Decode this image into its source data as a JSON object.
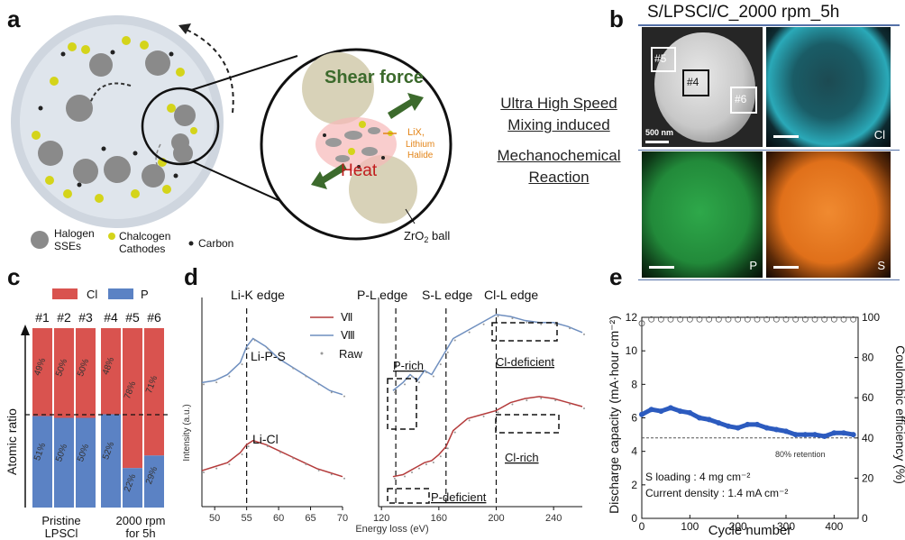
{
  "panels": {
    "a": {
      "letter": "a",
      "shear_force": "Shear force",
      "heat": "Heat",
      "lix": "LiX,",
      "lithium_halide_1": "Lithium",
      "lithium_halide_2": "Halide",
      "zro2_ball": "ZrO",
      "zro2_sub": "2",
      "zro2_tail": " ball",
      "legend_halogen_1": "Halogen",
      "legend_halogen_2": "SSEs",
      "legend_chalcogen_1": "Chalcogen",
      "legend_chalcogen_2": "Cathodes",
      "legend_carbon": "Carbon"
    },
    "middle": {
      "line1": "Ultra High Speed",
      "line2": "Mixing induced",
      "line3": "Mechanochemical",
      "line4": "Reaction"
    },
    "b": {
      "letter": "b",
      "title": "S/LPSCl/C_2000 rpm_5h",
      "box5": "#5",
      "box4": "#4",
      "box6": "#6",
      "scale": "500 nm",
      "cl": "Cl",
      "p": "P",
      "s": "S"
    },
    "c": {
      "letter": "c",
      "legend_cl": "Cl",
      "legend_p": "P",
      "ylabel": "Atomic ratio",
      "group1_1": "Pristine",
      "group1_2": "LPSCl",
      "group2_1": "2000 rpm",
      "group2_2": "for 5h"
    },
    "d": {
      "letter": "d",
      "li_k_edge": "Li-K edge",
      "p_l_edge": "P-L edge",
      "s_l_edge": "S-L edge",
      "cl_l_edge": "Cl-L edge",
      "li_p_s": "Li-P-S",
      "li_cl": "Li-Cl",
      "legend_vii": "Ⅶ",
      "legend_viii": "Ⅷ",
      "legend_raw": "Raw",
      "p_rich": "P-rich",
      "cl_deficient": "Cl-deficient",
      "cl_rich": "Cl-rich",
      "p_deficient": "P-deficient",
      "ylabel": "Intensity (a.u.)",
      "xlabel": "Energy loss (eV)"
    },
    "e": {
      "letter": "e",
      "ylabel_left": "Discharge capacity (mA·hour cm⁻²)",
      "ylabel_right": "Coulombic efficiency (%)",
      "xlabel": "Cycle number",
      "retention": "80% retention",
      "s_loading": "S loading : 4 mg cm⁻²",
      "current_density": "Current density : 1.4 mA cm⁻²"
    }
  },
  "colors": {
    "cl_red": "#d9534f",
    "p_blue": "#5b82c4",
    "spectrum_red": "#b43c3c",
    "spectrum_blue": "#6f8fbf",
    "capacity_blue": "#2c5bbf",
    "eds_cl": "#2fb6c6",
    "eds_p": "#2ea84a",
    "eds_s": "#ee7a22"
  },
  "chart_data": [
    {
      "type": "bar",
      "stacked": true,
      "categories": [
        "#1",
        "#2",
        "#3",
        "#4",
        "#5",
        "#6"
      ],
      "series": [
        {
          "name": "P",
          "values": [
            51,
            50,
            50,
            52,
            22,
            29
          ],
          "labels": [
            "51%",
            "50%",
            "50%",
            "52%",
            "22%",
            "29%"
          ]
        },
        {
          "name": "Cl",
          "values": [
            49,
            50,
            50,
            48,
            78,
            71
          ],
          "labels": [
            "49%",
            "50%",
            "50%",
            "48%",
            "78%",
            "71%"
          ]
        }
      ],
      "ylim": [
        0,
        100
      ]
    },
    {
      "type": "line",
      "panel": "d-left",
      "x": [
        48,
        50,
        52,
        54,
        55,
        56,
        58,
        60,
        62,
        64,
        66,
        68,
        70
      ],
      "xticks": [
        "50",
        "55",
        "60",
        "65",
        "70"
      ],
      "xtick_values": [
        50,
        55,
        60,
        65,
        70
      ],
      "xlim": [
        48,
        70
      ],
      "series": [
        {
          "name": "Ⅷ",
          "values": [
            0.62,
            0.63,
            0.66,
            0.72,
            0.8,
            0.84,
            0.8,
            0.74,
            0.7,
            0.66,
            0.62,
            0.58,
            0.56
          ]
        },
        {
          "name": "Ⅶ",
          "values": [
            0.18,
            0.2,
            0.22,
            0.27,
            0.31,
            0.33,
            0.31,
            0.28,
            0.25,
            0.22,
            0.19,
            0.17,
            0.15
          ]
        }
      ]
    },
    {
      "type": "line",
      "panel": "d-right",
      "x": [
        128,
        135,
        140,
        145,
        150,
        155,
        160,
        165,
        170,
        180,
        190,
        200,
        210,
        220,
        230,
        240,
        250,
        260
      ],
      "xticks": [
        "120",
        "160",
        "200",
        "240"
      ],
      "xtick_values": [
        120,
        160,
        200,
        240
      ],
      "xlim": [
        118,
        260
      ],
      "series": [
        {
          "name": "Ⅷ",
          "values": [
            0.58,
            0.62,
            0.66,
            0.63,
            0.68,
            0.66,
            0.72,
            0.78,
            0.84,
            0.88,
            0.92,
            0.96,
            0.95,
            0.93,
            0.92,
            0.92,
            0.9,
            0.87
          ]
        },
        {
          "name": "Ⅶ",
          "values": [
            0.15,
            0.16,
            0.18,
            0.2,
            0.22,
            0.23,
            0.26,
            0.3,
            0.38,
            0.44,
            0.46,
            0.48,
            0.52,
            0.54,
            0.55,
            0.54,
            0.52,
            0.5
          ]
        }
      ]
    },
    {
      "type": "scatter",
      "panel": "e",
      "xlim": [
        0,
        450
      ],
      "xticks": [
        0,
        100,
        200,
        300,
        400
      ],
      "ylim_left": [
        0,
        12
      ],
      "yticks_left": [
        0,
        2,
        4,
        6,
        8,
        10,
        12
      ],
      "ylim_right": [
        0,
        100
      ],
      "yticks_right": [
        0,
        20,
        40,
        60,
        80,
        100
      ],
      "retention_line": 4.8,
      "series": [
        {
          "name": "Discharge capacity",
          "x": [
            0,
            20,
            40,
            60,
            80,
            100,
            120,
            140,
            160,
            180,
            200,
            220,
            240,
            260,
            280,
            300,
            320,
            340,
            360,
            380,
            400,
            420,
            440
          ],
          "values": [
            6.2,
            6.5,
            6.4,
            6.6,
            6.4,
            6.3,
            6.0,
            5.9,
            5.7,
            5.5,
            5.4,
            5.6,
            5.6,
            5.4,
            5.3,
            5.2,
            5.0,
            5.0,
            5.0,
            4.9,
            5.1,
            5.1,
            5.0
          ]
        },
        {
          "name": "Coulombic efficiency",
          "x": [
            0,
            20,
            40,
            60,
            80,
            100,
            120,
            140,
            160,
            180,
            200,
            220,
            240,
            260,
            280,
            300,
            320,
            340,
            360,
            380,
            400,
            420,
            440
          ],
          "values": [
            97,
            99,
            99,
            99,
            99,
            99,
            99,
            99,
            99,
            99,
            99,
            99,
            99,
            99,
            99,
            99,
            99,
            99,
            99,
            99,
            99,
            99,
            99
          ]
        }
      ]
    }
  ]
}
